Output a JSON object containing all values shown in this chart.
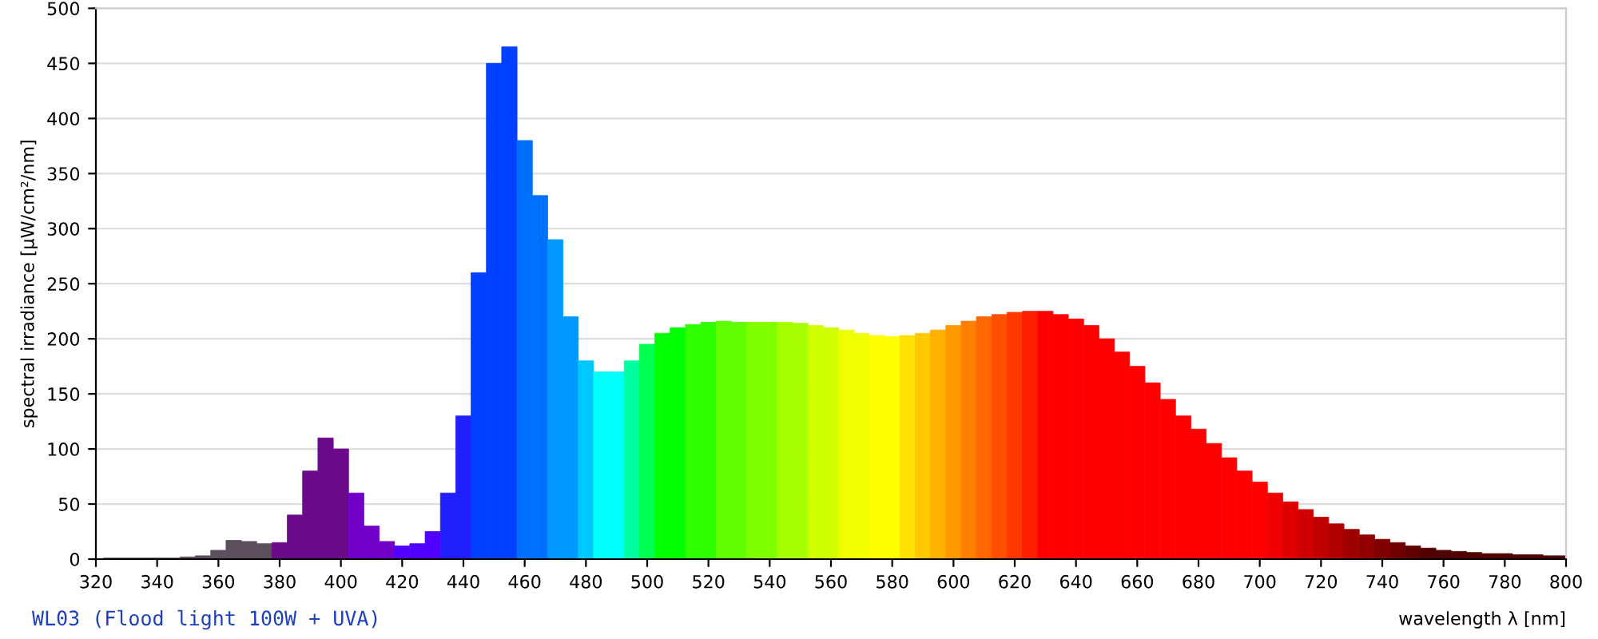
{
  "chart_data": {
    "type": "bar",
    "title": "WL03 (Flood light 100W + UVA)",
    "xlabel": "wavelength λ [nm]",
    "ylabel": "spectral irradiance [µW/cm²/nm]",
    "x": [
      325,
      330,
      335,
      340,
      345,
      350,
      355,
      360,
      365,
      370,
      375,
      380,
      385,
      390,
      395,
      400,
      405,
      410,
      415,
      420,
      425,
      430,
      435,
      440,
      445,
      450,
      455,
      460,
      465,
      470,
      475,
      480,
      485,
      490,
      495,
      500,
      505,
      510,
      515,
      520,
      525,
      530,
      535,
      540,
      545,
      550,
      555,
      560,
      565,
      570,
      575,
      580,
      585,
      590,
      595,
      600,
      605,
      610,
      615,
      620,
      625,
      630,
      635,
      640,
      645,
      650,
      655,
      660,
      665,
      670,
      675,
      680,
      685,
      690,
      695,
      700,
      705,
      710,
      715,
      720,
      725,
      730,
      735,
      740,
      745,
      750,
      755,
      760,
      765,
      770,
      775,
      780,
      785,
      790,
      795,
      800
    ],
    "values": [
      1,
      1,
      1,
      1,
      1,
      2,
      3,
      8,
      17,
      16,
      14,
      15,
      40,
      80,
      110,
      100,
      60,
      30,
      16,
      12,
      14,
      25,
      60,
      130,
      260,
      450,
      465,
      380,
      330,
      290,
      220,
      180,
      170,
      170,
      180,
      195,
      205,
      210,
      213,
      215,
      216,
      215,
      215,
      215,
      215,
      214,
      212,
      210,
      208,
      205,
      203,
      202,
      203,
      205,
      208,
      212,
      216,
      220,
      222,
      224,
      225,
      225,
      222,
      218,
      212,
      200,
      188,
      175,
      160,
      145,
      130,
      118,
      105,
      92,
      80,
      70,
      60,
      52,
      45,
      38,
      32,
      27,
      22,
      18,
      15,
      12,
      10,
      8,
      7,
      6,
      5,
      5,
      4,
      4,
      3,
      3
    ],
    "colors": [
      "#5a4f5a",
      "#5a4f5a",
      "#5a4f5a",
      "#5a4f5a",
      "#5a4f5a",
      "#5a4f5a",
      "#5a4f5a",
      "#5a4f5a",
      "#5a4f5a",
      "#5a4f5a",
      "#5a4f5a",
      "#6a0a8a",
      "#6a0a8a",
      "#6a0a8a",
      "#6a0a8a",
      "#6a0a8a",
      "#7000c8",
      "#7000c8",
      "#7000c8",
      "#5000ff",
      "#5000ff",
      "#5000ff",
      "#2020ff",
      "#2020ff",
      "#0040ff",
      "#0040ff",
      "#0040ff",
      "#0070ff",
      "#0070ff",
      "#0098ff",
      "#0098ff",
      "#00c8ff",
      "#00ffff",
      "#00ffff",
      "#00ffa0",
      "#00ff50",
      "#00ff00",
      "#00ff00",
      "#30ff00",
      "#30ff00",
      "#60ff00",
      "#60ff00",
      "#80ff00",
      "#80ff00",
      "#a8ff00",
      "#a8ff00",
      "#d0ff00",
      "#d0ff00",
      "#f0ff00",
      "#f0ff00",
      "#ffff00",
      "#ffff00",
      "#ffe000",
      "#ffc800",
      "#ffb000",
      "#ff9800",
      "#ff8000",
      "#ff6800",
      "#ff5000",
      "#ff3800",
      "#ff2000",
      "#ff0000",
      "#ff0000",
      "#ff0000",
      "#ff0000",
      "#ff0000",
      "#ff0000",
      "#ff0000",
      "#ff0000",
      "#ff0000",
      "#ff0000",
      "#ff0000",
      "#ff0000",
      "#ff0000",
      "#ff0000",
      "#ff0000",
      "#f00000",
      "#e00000",
      "#d00000",
      "#c00000",
      "#b00000",
      "#a00000",
      "#900000",
      "#800000",
      "#700000",
      "#600000",
      "#500000",
      "#500000",
      "#500000",
      "#500000",
      "#500000",
      "#500000",
      "#500000",
      "#500000",
      "#500000",
      "#500000"
    ],
    "xlim": [
      320,
      800
    ],
    "xticks": [
      320,
      340,
      360,
      380,
      400,
      420,
      440,
      460,
      480,
      500,
      520,
      540,
      560,
      580,
      600,
      620,
      640,
      660,
      680,
      700,
      720,
      740,
      760,
      780,
      800
    ],
    "ylim": [
      0,
      500
    ],
    "yticks": [
      0,
      50,
      100,
      150,
      200,
      250,
      300,
      350,
      400,
      450,
      500
    ],
    "grid": "y"
  }
}
